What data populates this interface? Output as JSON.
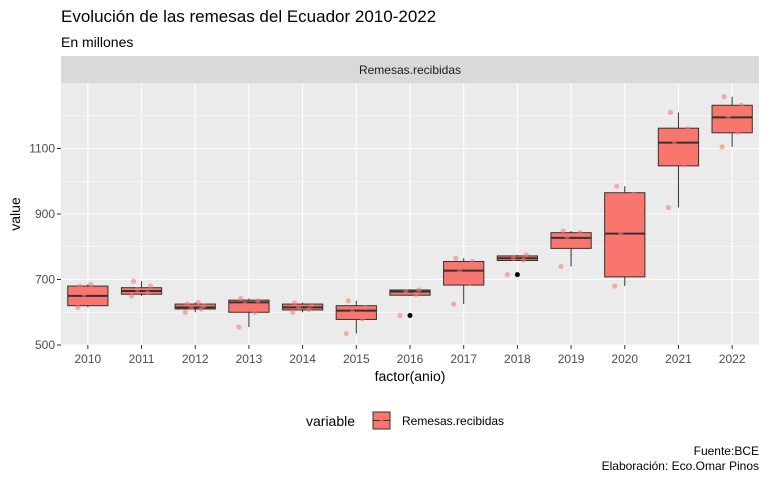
{
  "chart_data": {
    "type": "boxplot",
    "title": "Evolución de las remesas del Ecuador 2010-2022",
    "subtitle": "En millones",
    "facet_label": "Remesas.recibidas",
    "xlabel": "factor(anio)",
    "ylabel": "value",
    "ylim": [
      500,
      1300
    ],
    "yticks": [
      500,
      700,
      900,
      1100
    ],
    "legend": {
      "title": "variable",
      "entries": [
        "Remesas.recibidas"
      ],
      "position": "bottom"
    },
    "caption": [
      "Fuente:BCE",
      "Elaboración: Eco.Omar Pinos"
    ],
    "grid": true,
    "colors": {
      "box_fill": "#F8766D",
      "points": "#F8766D",
      "outlier": "#000000",
      "panel_bg": "#EBEBEB",
      "strip_bg": "#D9D9D9",
      "grid": "#FFFFFF"
    },
    "categories": [
      "2010",
      "2011",
      "2012",
      "2013",
      "2014",
      "2015",
      "2016",
      "2017",
      "2018",
      "2019",
      "2020",
      "2021",
      "2022"
    ],
    "boxes": [
      {
        "x": "2010",
        "min": 615,
        "q1": 620,
        "median": 650,
        "q3": 680,
        "max": 685,
        "outliers": []
      },
      {
        "x": "2011",
        "min": 650,
        "q1": 655,
        "median": 665,
        "q3": 675,
        "max": 695,
        "outliers": []
      },
      {
        "x": "2012",
        "min": 600,
        "q1": 610,
        "median": 615,
        "q3": 625,
        "max": 630,
        "outliers": []
      },
      {
        "x": "2013",
        "min": 555,
        "q1": 600,
        "median": 630,
        "q3": 637,
        "max": 642,
        "outliers": []
      },
      {
        "x": "2014",
        "min": 600,
        "q1": 607,
        "median": 615,
        "q3": 625,
        "max": 630,
        "outliers": []
      },
      {
        "x": "2015",
        "min": 535,
        "q1": 578,
        "median": 605,
        "q3": 620,
        "max": 635,
        "outliers": []
      },
      {
        "x": "2016",
        "min": 650,
        "q1": 652,
        "median": 663,
        "q3": 668,
        "max": 670,
        "outliers": [
          590
        ]
      },
      {
        "x": "2017",
        "min": 625,
        "q1": 683,
        "median": 727,
        "q3": 755,
        "max": 765,
        "outliers": []
      },
      {
        "x": "2018",
        "min": 758,
        "q1": 758,
        "median": 765,
        "q3": 772,
        "max": 775,
        "outliers": [
          715
        ]
      },
      {
        "x": "2019",
        "min": 740,
        "q1": 795,
        "median": 827,
        "q3": 843,
        "max": 848,
        "outliers": []
      },
      {
        "x": "2020",
        "min": 680,
        "q1": 708,
        "median": 840,
        "q3": 965,
        "max": 985,
        "outliers": []
      },
      {
        "x": "2021",
        "min": 920,
        "q1": 1047,
        "median": 1118,
        "q3": 1162,
        "max": 1210,
        "outliers": []
      },
      {
        "x": "2022",
        "min": 1105,
        "q1": 1148,
        "median": 1195,
        "q3": 1232,
        "max": 1258,
        "outliers": []
      }
    ],
    "jitter_points": [
      {
        "x": "2010",
        "values": [
          615,
          630,
          655,
          670,
          680,
          685
        ]
      },
      {
        "x": "2011",
        "values": [
          650,
          660,
          670,
          680,
          695
        ]
      },
      {
        "x": "2012",
        "values": [
          600,
          610,
          615,
          620,
          625,
          630
        ]
      },
      {
        "x": "2013",
        "values": [
          555,
          600,
          625,
          635,
          642
        ]
      },
      {
        "x": "2014",
        "values": [
          600,
          608,
          615,
          622,
          628
        ]
      },
      {
        "x": "2015",
        "values": [
          535,
          580,
          600,
          615,
          635
        ]
      },
      {
        "x": "2016",
        "values": [
          590,
          655,
          663,
          668
        ]
      },
      {
        "x": "2017",
        "values": [
          625,
          690,
          725,
          755,
          765
        ]
      },
      {
        "x": "2018",
        "values": [
          715,
          760,
          765,
          775
        ]
      },
      {
        "x": "2019",
        "values": [
          740,
          810,
          830,
          843,
          848
        ]
      },
      {
        "x": "2020",
        "values": [
          680,
          740,
          840,
          960,
          985
        ]
      },
      {
        "x": "2021",
        "values": [
          920,
          1050,
          1120,
          1160,
          1210
        ]
      },
      {
        "x": "2022",
        "values": [
          1105,
          1150,
          1195,
          1232,
          1258
        ]
      }
    ]
  }
}
